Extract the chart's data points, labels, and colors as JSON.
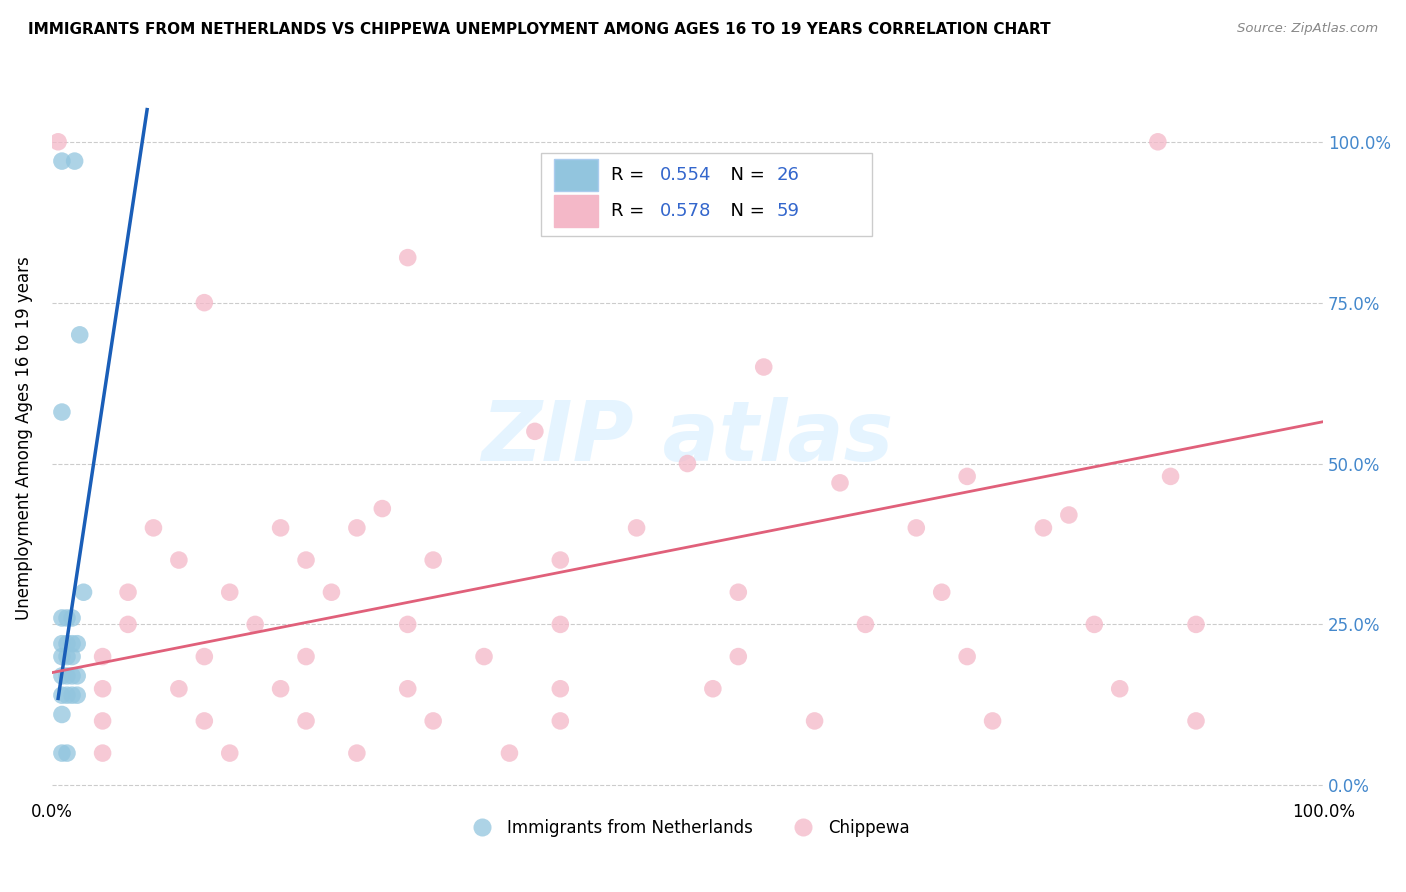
{
  "title": "IMMIGRANTS FROM NETHERLANDS VS CHIPPEWA UNEMPLOYMENT AMONG AGES 16 TO 19 YEARS CORRELATION CHART",
  "source": "Source: ZipAtlas.com",
  "ylabel": "Unemployment Among Ages 16 to 19 years",
  "legend1_label": "Immigrants from Netherlands",
  "legend2_label": "Chippewa",
  "r1": "0.554",
  "n1": "26",
  "r2": "0.578",
  "n2": "59",
  "color_blue": "#92c5de",
  "color_pink": "#f4b8c8",
  "line_color_blue": "#1a5eb8",
  "line_color_pink": "#e0607a",
  "blue_scatter": [
    [
      0.008,
      0.97
    ],
    [
      0.018,
      0.97
    ],
    [
      0.022,
      0.7
    ],
    [
      0.008,
      0.58
    ],
    [
      0.025,
      0.3
    ],
    [
      0.008,
      0.26
    ],
    [
      0.012,
      0.26
    ],
    [
      0.016,
      0.26
    ],
    [
      0.008,
      0.22
    ],
    [
      0.012,
      0.22
    ],
    [
      0.016,
      0.22
    ],
    [
      0.02,
      0.22
    ],
    [
      0.008,
      0.2
    ],
    [
      0.012,
      0.2
    ],
    [
      0.016,
      0.2
    ],
    [
      0.008,
      0.17
    ],
    [
      0.012,
      0.17
    ],
    [
      0.016,
      0.17
    ],
    [
      0.02,
      0.17
    ],
    [
      0.008,
      0.14
    ],
    [
      0.012,
      0.14
    ],
    [
      0.016,
      0.14
    ],
    [
      0.02,
      0.14
    ],
    [
      0.008,
      0.05
    ],
    [
      0.012,
      0.05
    ],
    [
      0.008,
      0.11
    ]
  ],
  "pink_scatter": [
    [
      0.005,
      1.0
    ],
    [
      0.87,
      1.0
    ],
    [
      0.28,
      0.82
    ],
    [
      0.12,
      0.75
    ],
    [
      0.56,
      0.65
    ],
    [
      0.38,
      0.55
    ],
    [
      0.5,
      0.5
    ],
    [
      0.62,
      0.47
    ],
    [
      0.26,
      0.43
    ],
    [
      0.08,
      0.4
    ],
    [
      0.18,
      0.4
    ],
    [
      0.24,
      0.4
    ],
    [
      0.46,
      0.4
    ],
    [
      0.68,
      0.4
    ],
    [
      0.78,
      0.4
    ],
    [
      0.1,
      0.35
    ],
    [
      0.2,
      0.35
    ],
    [
      0.3,
      0.35
    ],
    [
      0.4,
      0.35
    ],
    [
      0.06,
      0.3
    ],
    [
      0.14,
      0.3
    ],
    [
      0.22,
      0.3
    ],
    [
      0.54,
      0.3
    ],
    [
      0.7,
      0.3
    ],
    [
      0.06,
      0.25
    ],
    [
      0.16,
      0.25
    ],
    [
      0.28,
      0.25
    ],
    [
      0.4,
      0.25
    ],
    [
      0.64,
      0.25
    ],
    [
      0.82,
      0.25
    ],
    [
      0.9,
      0.25
    ],
    [
      0.04,
      0.2
    ],
    [
      0.12,
      0.2
    ],
    [
      0.2,
      0.2
    ],
    [
      0.34,
      0.2
    ],
    [
      0.54,
      0.2
    ],
    [
      0.72,
      0.2
    ],
    [
      0.04,
      0.15
    ],
    [
      0.1,
      0.15
    ],
    [
      0.18,
      0.15
    ],
    [
      0.28,
      0.15
    ],
    [
      0.4,
      0.15
    ],
    [
      0.52,
      0.15
    ],
    [
      0.84,
      0.15
    ],
    [
      0.04,
      0.1
    ],
    [
      0.12,
      0.1
    ],
    [
      0.2,
      0.1
    ],
    [
      0.3,
      0.1
    ],
    [
      0.4,
      0.1
    ],
    [
      0.6,
      0.1
    ],
    [
      0.74,
      0.1
    ],
    [
      0.9,
      0.1
    ],
    [
      0.04,
      0.05
    ],
    [
      0.14,
      0.05
    ],
    [
      0.24,
      0.05
    ],
    [
      0.36,
      0.05
    ],
    [
      0.8,
      0.42
    ],
    [
      0.88,
      0.48
    ],
    [
      0.72,
      0.48
    ]
  ],
  "blue_line_x": [
    0.005,
    0.075
  ],
  "blue_line_y": [
    0.135,
    1.05
  ],
  "pink_line_x": [
    0.0,
    1.0
  ],
  "pink_line_y": [
    0.175,
    0.565
  ],
  "xlim": [
    0.0,
    1.0
  ],
  "ylim": [
    -0.02,
    1.1
  ],
  "ytick_vals": [
    0.0,
    0.25,
    0.5,
    0.75,
    1.0
  ],
  "ytick_labels": [
    "0.0%",
    "25.0%",
    "50.0%",
    "75.0%",
    "100.0%"
  ],
  "xtick_vals": [
    0.0,
    0.25,
    0.5,
    0.75,
    1.0
  ],
  "xtick_labels": [
    "0.0%",
    "",
    "",
    "",
    "100.0%"
  ]
}
